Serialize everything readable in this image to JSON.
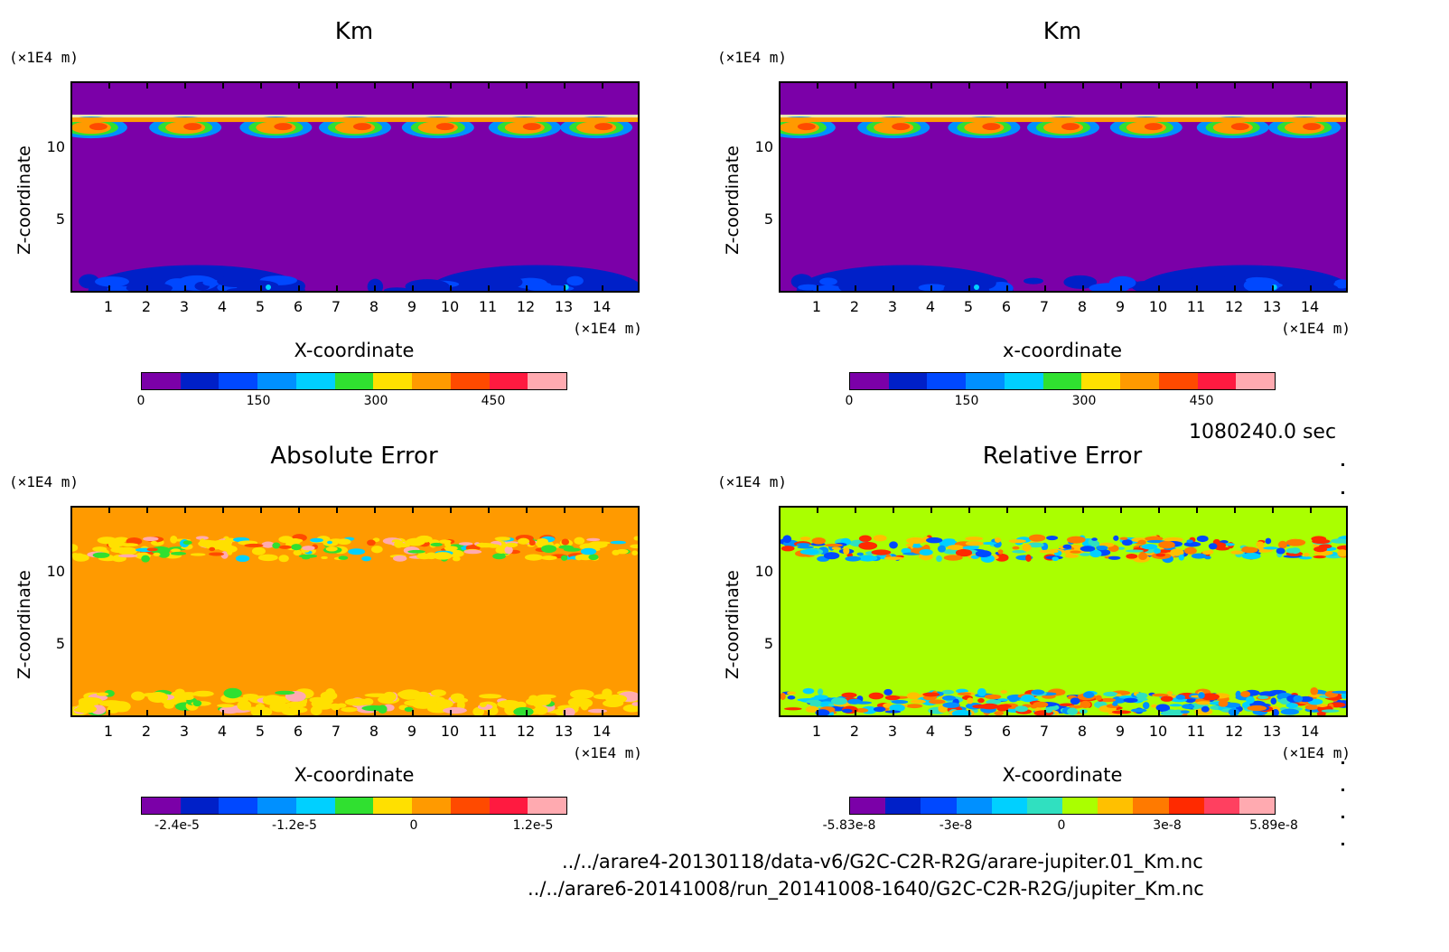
{
  "chart_data": [
    {
      "type": "heatmap",
      "title": "Km",
      "xlabel": "X-coordinate",
      "ylabel": "Z-coordinate",
      "x_unit": "(×1E4 m)",
      "y_unit": "(×1E4 m)",
      "xlim": [
        0,
        15
      ],
      "ylim": [
        0,
        14.5
      ],
      "xticks": [
        "1",
        "2",
        "3",
        "4",
        "5",
        "6",
        "7",
        "8",
        "9",
        "10",
        "11",
        "12",
        "13",
        "14"
      ],
      "yticks": [
        "5",
        "10"
      ],
      "colorbar": {
        "colors": [
          "#7b00a8",
          "#0020c8",
          "#0048ff",
          "#0090ff",
          "#00d0ff",
          "#30e030",
          "#ffe000",
          "#ff9a00",
          "#ff4a00",
          "#ff1a40",
          "#ffaab0"
        ],
        "labels": [
          "0",
          "150",
          "300",
          "450"
        ],
        "range": [
          0,
          550
        ]
      }
    },
    {
      "type": "heatmap",
      "title": "Km",
      "xlabel": "x-coordinate",
      "ylabel": "Z-coordinate",
      "x_unit": "(×1E4 m)",
      "y_unit": "(×1E4 m)",
      "xlim": [
        0,
        15
      ],
      "ylim": [
        0,
        14.5
      ],
      "xticks": [
        "1",
        "2",
        "3",
        "4",
        "5",
        "6",
        "7",
        "8",
        "9",
        "10",
        "11",
        "12",
        "13",
        "14"
      ],
      "yticks": [
        "5",
        "10"
      ],
      "colorbar": {
        "colors": [
          "#7b00a8",
          "#0020c8",
          "#0048ff",
          "#0090ff",
          "#00d0ff",
          "#30e030",
          "#ffe000",
          "#ff9a00",
          "#ff4a00",
          "#ff1a40",
          "#ffaab0"
        ],
        "labels": [
          "0",
          "150",
          "300",
          "450"
        ],
        "range": [
          0,
          550
        ]
      }
    },
    {
      "type": "heatmap",
      "title": "Absolute Error",
      "xlabel": "X-coordinate",
      "ylabel": "Z-coordinate",
      "x_unit": "(×1E4 m)",
      "y_unit": "(×1E4 m)",
      "xlim": [
        0,
        15
      ],
      "ylim": [
        0,
        14.5
      ],
      "xticks": [
        "1",
        "2",
        "3",
        "4",
        "5",
        "6",
        "7",
        "8",
        "9",
        "10",
        "11",
        "12",
        "13",
        "14"
      ],
      "yticks": [
        "5",
        "10"
      ],
      "colorbar": {
        "colors": [
          "#7b00a8",
          "#0020c8",
          "#0048ff",
          "#0090ff",
          "#00d0ff",
          "#30e030",
          "#ffe000",
          "#ff9a00",
          "#ff4a00",
          "#ff1a40",
          "#ffaab0"
        ],
        "labels": [
          "-2.4e-5",
          "-1.2e-5",
          "0",
          "1.2e-5"
        ]
      }
    },
    {
      "type": "heatmap",
      "title": "Relative Error",
      "xlabel": "X-coordinate",
      "ylabel": "Z-coordinate",
      "x_unit": "(×1E4 m)",
      "y_unit": "(×1E4 m)",
      "xlim": [
        0,
        15
      ],
      "ylim": [
        0,
        14.5
      ],
      "xticks": [
        "1",
        "2",
        "3",
        "4",
        "5",
        "6",
        "7",
        "8",
        "9",
        "10",
        "11",
        "12",
        "13",
        "14"
      ],
      "yticks": [
        "5",
        "10"
      ],
      "colorbar": {
        "colors": [
          "#7b00a8",
          "#0020c8",
          "#0048ff",
          "#0090ff",
          "#00d0ff",
          "#30e0c0",
          "#aaff00",
          "#ffc000",
          "#ff7a00",
          "#ff2a00",
          "#ff4060",
          "#ffaab0"
        ],
        "labels": [
          "-5.83e-8",
          "-3e-8",
          "0",
          "3e-8",
          "5.89e-8"
        ]
      }
    }
  ],
  "time_label": "1080240.0 sec",
  "files": [
    "../../arare4-20130118/data-v6/G2C-C2R-R2G/arare-jupiter.01_Km.nc",
    "../../arare6-20141008/run_20141008-1640/G2C-C2R-R2G/jupiter_Km.nc"
  ]
}
